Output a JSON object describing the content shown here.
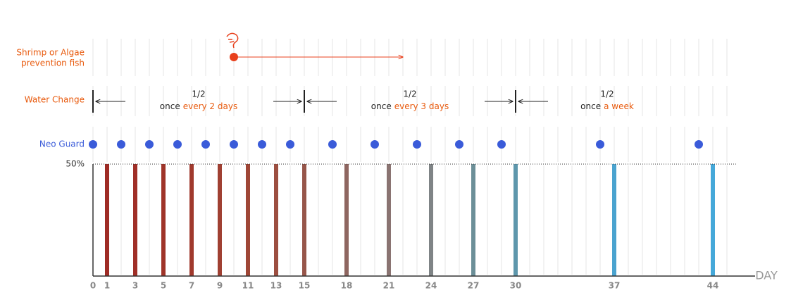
{
  "chart_data": {
    "type": "bar",
    "x": [
      1,
      3,
      5,
      7,
      9,
      11,
      13,
      15,
      18,
      21,
      24,
      27,
      30,
      37,
      44
    ],
    "values": [
      50,
      50,
      50,
      50,
      50,
      50,
      50,
      50,
      50,
      50,
      50,
      50,
      50,
      50,
      50
    ],
    "colors": [
      "#9e2b25",
      "#a02f27",
      "#9f3429",
      "#a0392d",
      "#a04032",
      "#9f4636",
      "#9c4e40",
      "#97564a",
      "#8e6660",
      "#8a7472",
      "#7f8486",
      "#6c8f98",
      "#5e97ac",
      "#4aa3cf",
      "#45a8d9"
    ],
    "xlim": [
      0,
      46
    ],
    "xticks": [
      0,
      1,
      3,
      5,
      7,
      9,
      11,
      13,
      15,
      18,
      21,
      24,
      27,
      30,
      37,
      44
    ],
    "x_label": "DAY",
    "ylim": [
      0,
      50
    ],
    "yticks": [
      {
        "value": 50,
        "label": "50%"
      }
    ],
    "grid": true,
    "shrimp": {
      "label": [
        "Shrimp or Algae",
        "prevention fish"
      ],
      "start": 10,
      "end": 22,
      "color": "#e8401c"
    },
    "water_change": {
      "label": "Water Change",
      "boundaries": [
        0,
        15,
        30
      ],
      "segments": [
        {
          "ratio": "1/2",
          "text": "once",
          "highlight": "every 2 days"
        },
        {
          "ratio": "1/2",
          "text": "once",
          "highlight": "every 3 days"
        },
        {
          "ratio": "1/2",
          "text": "once",
          "highlight": "a week"
        }
      ]
    },
    "neo_guard": {
      "label": "Neo Guard",
      "days": [
        0,
        2,
        4,
        6,
        8,
        10,
        12,
        14,
        17,
        20,
        23,
        26,
        29,
        36,
        43
      ],
      "color": "#3a5bd9"
    }
  }
}
